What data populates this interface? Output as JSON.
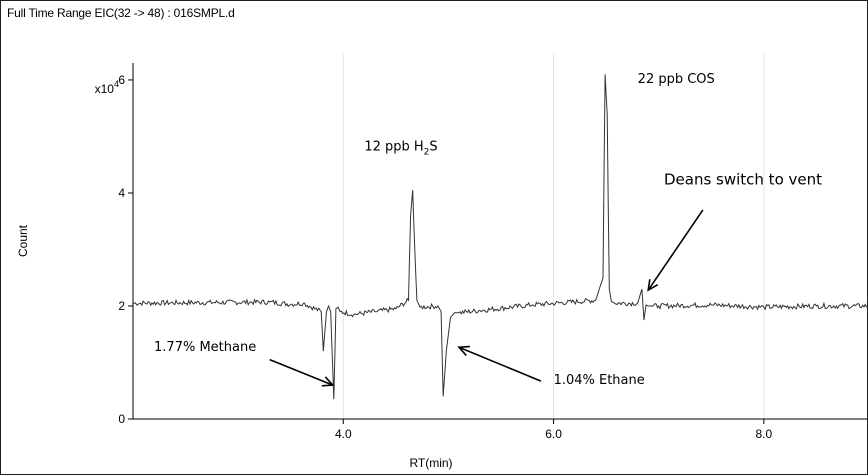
{
  "title": "Full Time Range EIC(32 -> 48) : 016SMPL.d",
  "chart_data": {
    "type": "line",
    "title": "Full Time Range EIC(32 -> 48) : 016SMPL.d",
    "xlabel": "RT(min)",
    "ylabel": "Count",
    "y_multiplier_label": "x10",
    "y_multiplier_exponent": "4",
    "xlim": [
      2.0,
      9.0
    ],
    "ylim": [
      0,
      6.3
    ],
    "x_ticks": [
      4.0,
      6.0,
      8.0
    ],
    "x_tick_labels": [
      "4.0",
      "6.0",
      "8.0"
    ],
    "y_ticks": [
      0,
      2,
      4,
      6
    ],
    "y_tick_labels": [
      "0",
      "2",
      "4",
      "6"
    ],
    "grid": true,
    "baseline": 2.0,
    "series": [
      {
        "x": [
          2.0,
          3.3,
          3.5,
          3.62,
          3.79,
          3.81,
          3.84,
          3.86,
          3.88,
          3.91,
          3.93,
          3.95,
          3.97,
          4.1,
          4.3,
          4.5,
          4.62,
          4.64,
          4.66,
          4.68,
          4.7,
          4.73,
          4.9,
          4.93,
          4.95,
          4.98,
          5.02,
          5.06,
          5.1,
          5.3,
          5.8,
          6.4,
          6.47,
          6.49,
          6.51,
          6.53,
          6.55,
          6.58,
          6.8,
          6.84,
          6.86,
          6.88,
          6.9,
          6.93,
          7.0,
          7.5,
          8.0,
          8.5,
          9.0
        ],
        "y": [
          2.05,
          2.07,
          2.03,
          2.05,
          1.9,
          1.2,
          1.9,
          2.0,
          1.9,
          0.35,
          1.95,
          1.98,
          1.9,
          1.85,
          1.9,
          1.95,
          2.1,
          3.6,
          4.05,
          3.0,
          2.1,
          1.98,
          2.0,
          1.9,
          0.4,
          1.2,
          1.8,
          1.88,
          1.88,
          1.92,
          2.02,
          2.1,
          2.5,
          6.1,
          5.4,
          2.3,
          2.08,
          2.05,
          2.05,
          2.3,
          1.75,
          2.02,
          2.0,
          2.0,
          2.0,
          2.02,
          1.98,
          2.0,
          2.0
        ]
      }
    ],
    "annotations": [
      {
        "id": "h2s",
        "x": 4.2,
        "y": 4.75,
        "parts": [
          "12 ppb H",
          "2",
          "S"
        ]
      },
      {
        "id": "cos",
        "x": 6.8,
        "y": 5.95,
        "parts": [
          "22 ppb COS"
        ]
      },
      {
        "id": "deans",
        "x": 7.05,
        "y": 4.15,
        "parts": [
          "Deans switch to vent"
        ]
      },
      {
        "id": "methane",
        "x": 2.2,
        "y": 1.2,
        "parts": [
          "1.77% Methane"
        ]
      },
      {
        "id": "ethane",
        "x": 6.0,
        "y": 0.62,
        "parts": [
          "1.04% Ethane"
        ]
      }
    ],
    "arrows": [
      {
        "id": "deans",
        "from": [
          7.42,
          3.7
        ],
        "to": [
          6.9,
          2.28
        ]
      },
      {
        "id": "methane",
        "from": [
          3.3,
          1.05
        ],
        "to": [
          3.9,
          0.6
        ]
      },
      {
        "id": "ethane",
        "from": [
          5.88,
          0.67
        ],
        "to": [
          5.1,
          1.27
        ]
      }
    ]
  }
}
